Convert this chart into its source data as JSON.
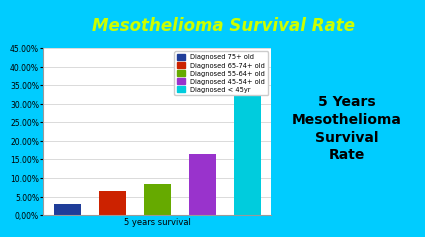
{
  "title": "Mesothelioma Survival Rate",
  "title_color": "#CCFF00",
  "title_bg": "#006060",
  "outer_bg": "#FF1493",
  "border_color": "#00CCFF",
  "chart_bg": "#FFFFFF",
  "xlabel": "5 years survival",
  "categories": [
    "75+ old",
    "65-74+ old",
    "55-64+ old",
    "45-54+ old",
    "< 45yr"
  ],
  "values": [
    3.0,
    6.5,
    8.5,
    16.5,
    38.5
  ],
  "bar_colors": [
    "#1F3D99",
    "#CC2200",
    "#66AA00",
    "#9933CC",
    "#00CCDD"
  ],
  "legend_labels": [
    "Diagnosed 75+ old",
    "Diagnosed 65-74+ old",
    "Diagnosed 55-64+ old",
    "Diagnosed 45-54+ old",
    "Diagnosed < 45yr"
  ],
  "ylim": [
    0,
    45
  ],
  "yticks": [
    0,
    5,
    10,
    15,
    20,
    25,
    30,
    35,
    40,
    45
  ],
  "right_text": "5 Years\nMesothelioma\nSurvival\nRate",
  "bar_width": 0.6,
  "border_lw": 4
}
